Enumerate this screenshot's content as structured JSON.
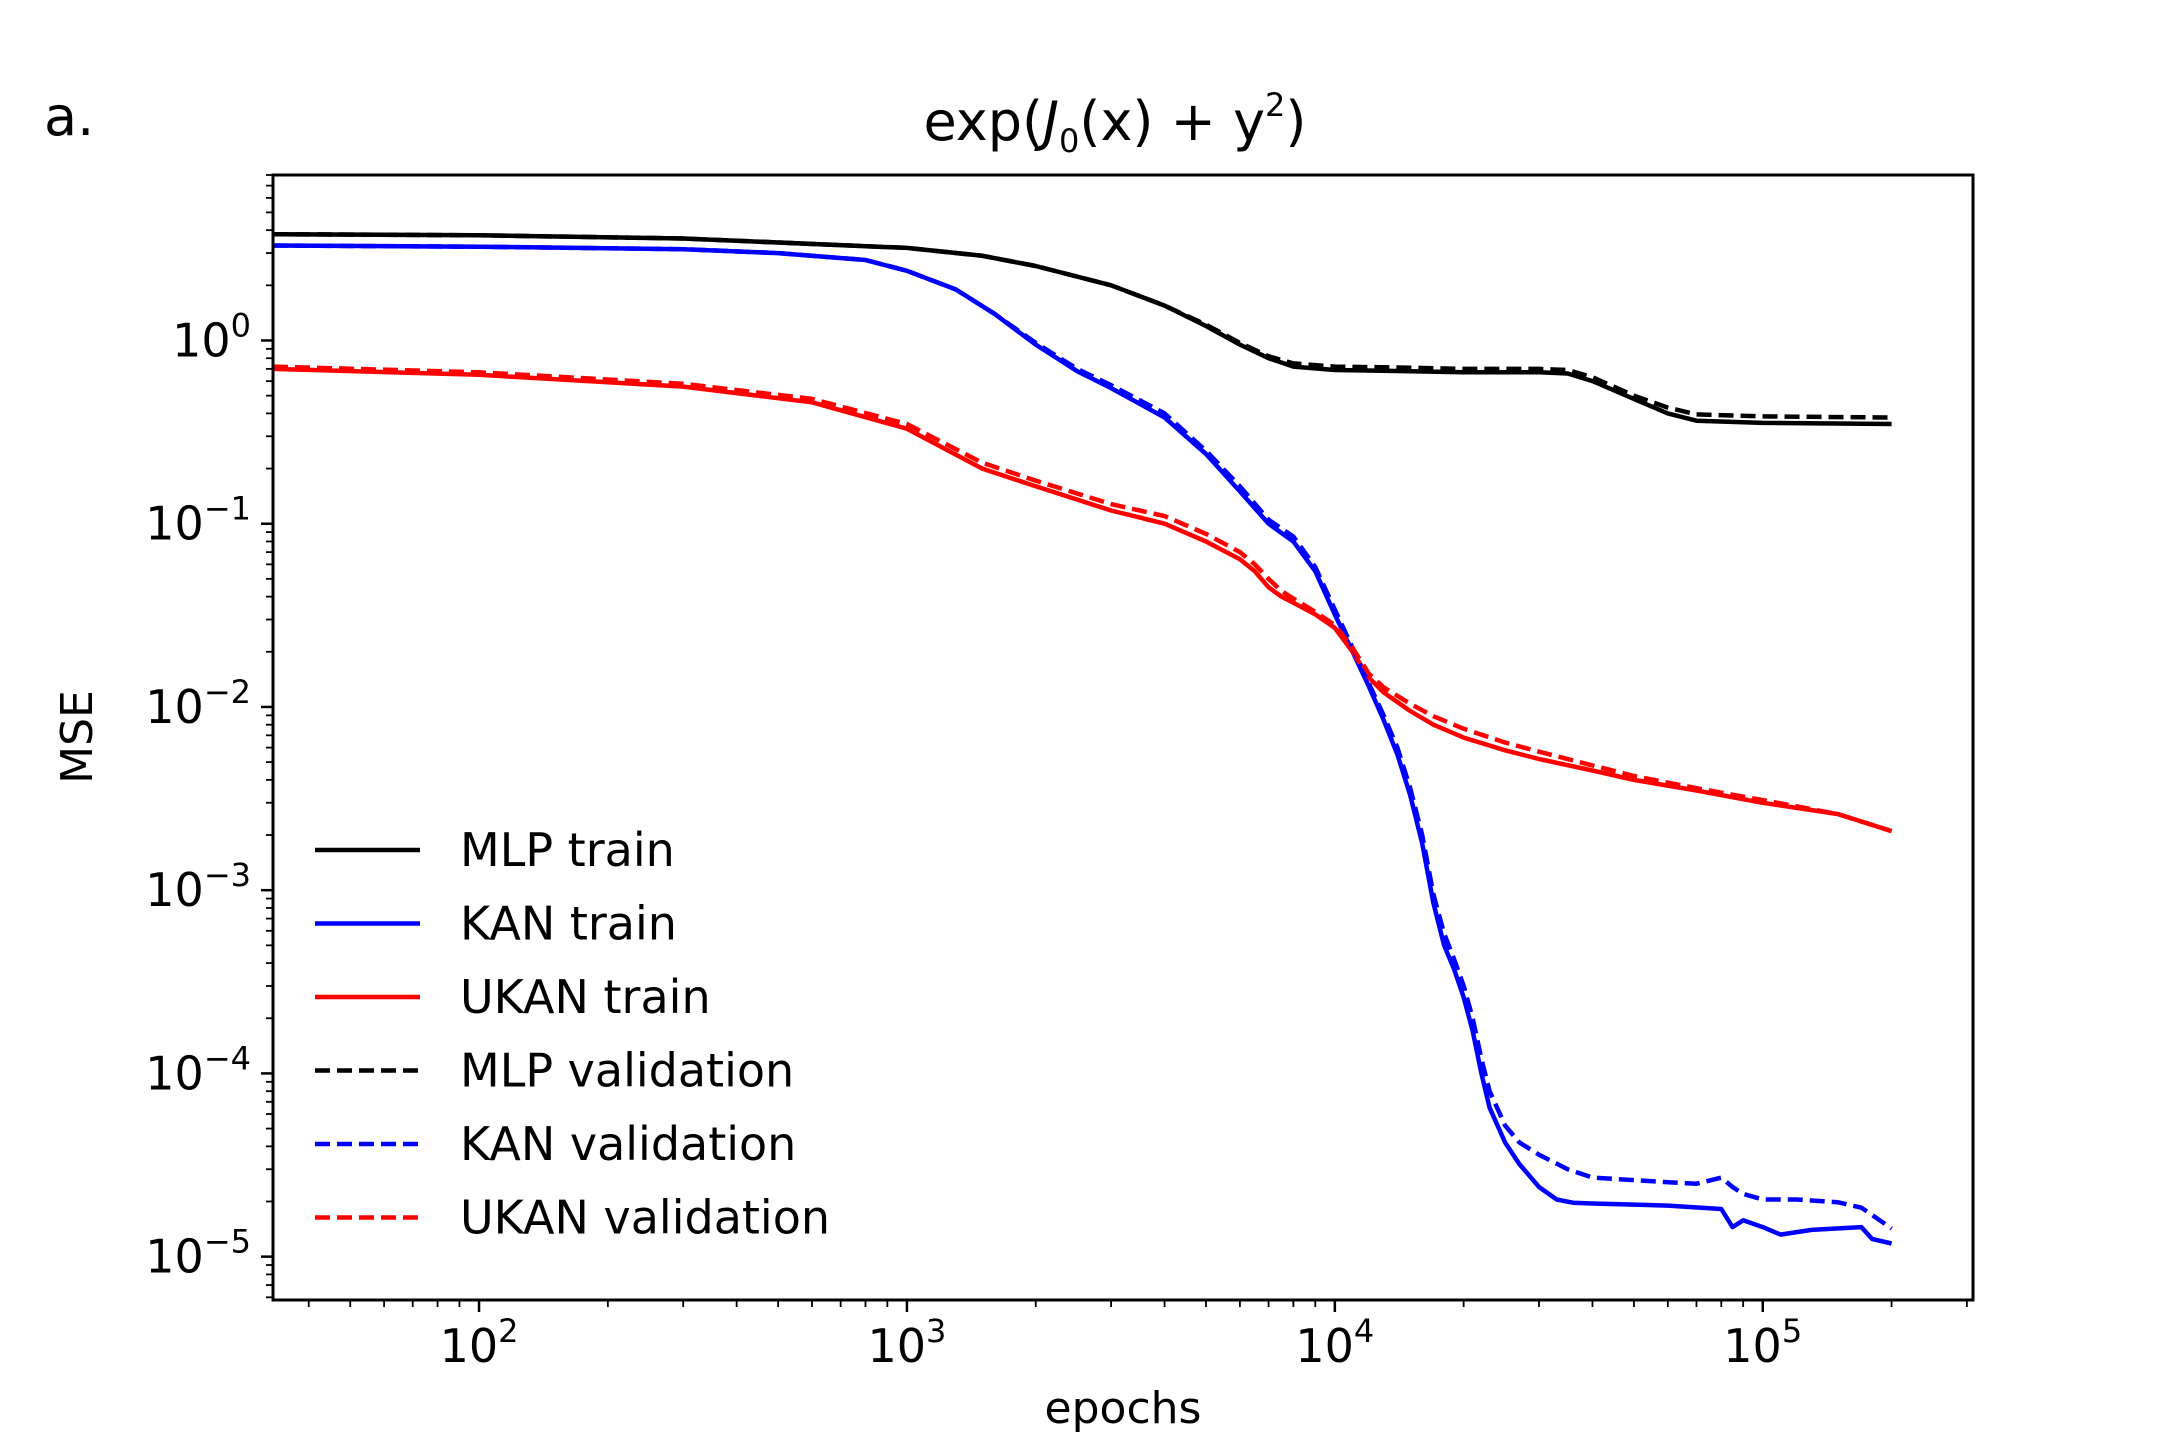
{
  "panel_label": "a.",
  "chart_data": {
    "type": "line",
    "title": "exp(J0(x) + y2)",
    "title_parts": {
      "prefix": "exp(",
      "func": "J",
      "sub": "0",
      "mid": "(x) + y",
      "sup": "2",
      "suffix": ")"
    },
    "xlabel": "epochs",
    "ylabel": "MSE",
    "xscale": "log",
    "yscale": "log",
    "xlim": [
      33,
      310000
    ],
    "ylim": [
      5.8e-06,
      8
    ],
    "grid": false,
    "legend_position": "lower-left",
    "x_ticks": [
      {
        "value": 100,
        "base": "10",
        "exp": "2"
      },
      {
        "value": 1000,
        "base": "10",
        "exp": "3"
      },
      {
        "value": 10000,
        "base": "10",
        "exp": "4"
      },
      {
        "value": 100000,
        "base": "10",
        "exp": "5"
      }
    ],
    "y_ticks": [
      {
        "value": 1,
        "base": "10",
        "exp": "0"
      },
      {
        "value": 0.1,
        "base": "10",
        "exp": "−1"
      },
      {
        "value": 0.01,
        "base": "10",
        "exp": "−2"
      },
      {
        "value": 0.001,
        "base": "10",
        "exp": "−3"
      },
      {
        "value": 0.0001,
        "base": "10",
        "exp": "−4"
      },
      {
        "value": 1e-05,
        "base": "10",
        "exp": "−5"
      }
    ],
    "series": [
      {
        "name": "MLP train",
        "color": "#000000",
        "dash": "solid",
        "points": [
          [
            33,
            3.8
          ],
          [
            100,
            3.75
          ],
          [
            300,
            3.6
          ],
          [
            1000,
            3.2
          ],
          [
            1500,
            2.9
          ],
          [
            2000,
            2.55
          ],
          [
            3000,
            2.0
          ],
          [
            4000,
            1.55
          ],
          [
            5000,
            1.2
          ],
          [
            6000,
            0.95
          ],
          [
            7000,
            0.8
          ],
          [
            8000,
            0.72
          ],
          [
            10000,
            0.69
          ],
          [
            15000,
            0.68
          ],
          [
            20000,
            0.67
          ],
          [
            30000,
            0.67
          ],
          [
            35000,
            0.66
          ],
          [
            40000,
            0.6
          ],
          [
            50000,
            0.48
          ],
          [
            60000,
            0.4
          ],
          [
            70000,
            0.365
          ],
          [
            100000,
            0.355
          ],
          [
            200000,
            0.35
          ]
        ]
      },
      {
        "name": "KAN train",
        "color": "#0000ff",
        "dash": "solid",
        "points": [
          [
            33,
            3.3
          ],
          [
            100,
            3.25
          ],
          [
            300,
            3.15
          ],
          [
            500,
            3.0
          ],
          [
            800,
            2.75
          ],
          [
            1000,
            2.4
          ],
          [
            1300,
            1.9
          ],
          [
            1600,
            1.4
          ],
          [
            2000,
            0.95
          ],
          [
            2500,
            0.68
          ],
          [
            3000,
            0.55
          ],
          [
            4000,
            0.38
          ],
          [
            5000,
            0.24
          ],
          [
            6000,
            0.15
          ],
          [
            7000,
            0.1
          ],
          [
            8000,
            0.08
          ],
          [
            9000,
            0.055
          ],
          [
            10000,
            0.032
          ],
          [
            11000,
            0.02
          ],
          [
            12000,
            0.013
          ],
          [
            13000,
            0.0085
          ],
          [
            14000,
            0.0055
          ],
          [
            15000,
            0.0033
          ],
          [
            16000,
            0.0018
          ],
          [
            17000,
            0.00085
          ],
          [
            18000,
            0.0005
          ],
          [
            19000,
            0.00037
          ],
          [
            20000,
            0.00026
          ],
          [
            21000,
            0.00017
          ],
          [
            22000,
            0.0001
          ],
          [
            23000,
            6.5e-05
          ],
          [
            25000,
            4.2e-05
          ],
          [
            27000,
            3.2e-05
          ],
          [
            30000,
            2.4e-05
          ],
          [
            33000,
            2.05e-05
          ],
          [
            36000,
            1.97e-05
          ],
          [
            40000,
            1.95e-05
          ],
          [
            60000,
            1.9e-05
          ],
          [
            80000,
            1.82e-05
          ],
          [
            85000,
            1.45e-05
          ],
          [
            90000,
            1.58e-05
          ],
          [
            100000,
            1.45e-05
          ],
          [
            110000,
            1.32e-05
          ],
          [
            130000,
            1.4e-05
          ],
          [
            170000,
            1.45e-05
          ],
          [
            180000,
            1.25e-05
          ],
          [
            200000,
            1.18e-05
          ]
        ]
      },
      {
        "name": "UKAN train",
        "color": "#ff0000",
        "dash": "solid",
        "points": [
          [
            33,
            0.7
          ],
          [
            100,
            0.65
          ],
          [
            300,
            0.56
          ],
          [
            600,
            0.46
          ],
          [
            1000,
            0.33
          ],
          [
            1500,
            0.2
          ],
          [
            2000,
            0.16
          ],
          [
            3000,
            0.118
          ],
          [
            4000,
            0.1
          ],
          [
            5000,
            0.08
          ],
          [
            6000,
            0.064
          ],
          [
            6500,
            0.055
          ],
          [
            7000,
            0.045
          ],
          [
            7500,
            0.04
          ],
          [
            8000,
            0.037
          ],
          [
            9000,
            0.032
          ],
          [
            10000,
            0.027
          ],
          [
            11000,
            0.02
          ],
          [
            12000,
            0.0145
          ],
          [
            13000,
            0.012
          ],
          [
            15000,
            0.0095
          ],
          [
            17000,
            0.008
          ],
          [
            20000,
            0.0068
          ],
          [
            25000,
            0.0058
          ],
          [
            30000,
            0.0052
          ],
          [
            40000,
            0.0045
          ],
          [
            50000,
            0.004
          ],
          [
            70000,
            0.0035
          ],
          [
            100000,
            0.003
          ],
          [
            150000,
            0.0026
          ],
          [
            200000,
            0.0021
          ]
        ]
      },
      {
        "name": "MLP validation",
        "color": "#000000",
        "dash": "dashed",
        "points": [
          [
            33,
            3.8
          ],
          [
            100,
            3.75
          ],
          [
            300,
            3.6
          ],
          [
            1000,
            3.2
          ],
          [
            1500,
            2.9
          ],
          [
            2000,
            2.55
          ],
          [
            3000,
            2.0
          ],
          [
            4000,
            1.55
          ],
          [
            5000,
            1.22
          ],
          [
            6000,
            0.97
          ],
          [
            7000,
            0.82
          ],
          [
            8000,
            0.75
          ],
          [
            10000,
            0.72
          ],
          [
            15000,
            0.71
          ],
          [
            20000,
            0.7
          ],
          [
            30000,
            0.7
          ],
          [
            35000,
            0.69
          ],
          [
            40000,
            0.63
          ],
          [
            50000,
            0.5
          ],
          [
            60000,
            0.43
          ],
          [
            70000,
            0.395
          ],
          [
            100000,
            0.385
          ],
          [
            200000,
            0.38
          ]
        ]
      },
      {
        "name": "KAN validation",
        "color": "#0000ff",
        "dash": "dashed",
        "points": [
          [
            33,
            3.3
          ],
          [
            100,
            3.25
          ],
          [
            300,
            3.15
          ],
          [
            500,
            3.0
          ],
          [
            800,
            2.75
          ],
          [
            1000,
            2.4
          ],
          [
            1300,
            1.9
          ],
          [
            1600,
            1.4
          ],
          [
            2000,
            0.97
          ],
          [
            2500,
            0.7
          ],
          [
            3000,
            0.57
          ],
          [
            4000,
            0.4
          ],
          [
            5000,
            0.25
          ],
          [
            6000,
            0.16
          ],
          [
            7000,
            0.105
          ],
          [
            8000,
            0.085
          ],
          [
            9000,
            0.058
          ],
          [
            10000,
            0.034
          ],
          [
            11000,
            0.021
          ],
          [
            12000,
            0.0135
          ],
          [
            13000,
            0.009
          ],
          [
            14000,
            0.006
          ],
          [
            15000,
            0.0036
          ],
          [
            16000,
            0.002
          ],
          [
            17000,
            0.00095
          ],
          [
            18000,
            0.00058
          ],
          [
            19000,
            0.00042
          ],
          [
            20000,
            0.0003
          ],
          [
            21000,
            0.0002
          ],
          [
            22000,
            0.00012
          ],
          [
            23000,
            8e-05
          ],
          [
            25000,
            5.2e-05
          ],
          [
            27000,
            4.2e-05
          ],
          [
            30000,
            3.6e-05
          ],
          [
            35000,
            3e-05
          ],
          [
            40000,
            2.7e-05
          ],
          [
            60000,
            2.55e-05
          ],
          [
            70000,
            2.5e-05
          ],
          [
            80000,
            2.7e-05
          ],
          [
            85000,
            2.4e-05
          ],
          [
            90000,
            2.2e-05
          ],
          [
            100000,
            2.05e-05
          ],
          [
            120000,
            2.05e-05
          ],
          [
            150000,
            1.98e-05
          ],
          [
            170000,
            1.85e-05
          ],
          [
            190000,
            1.55e-05
          ],
          [
            200000,
            1.42e-05
          ]
        ]
      },
      {
        "name": "UKAN validation",
        "color": "#ff0000",
        "dash": "dashed",
        "points": [
          [
            33,
            0.72
          ],
          [
            100,
            0.67
          ],
          [
            300,
            0.58
          ],
          [
            600,
            0.48
          ],
          [
            1000,
            0.35
          ],
          [
            1500,
            0.215
          ],
          [
            2000,
            0.172
          ],
          [
            3000,
            0.128
          ],
          [
            4000,
            0.11
          ],
          [
            5000,
            0.088
          ],
          [
            6000,
            0.07
          ],
          [
            6500,
            0.06
          ],
          [
            7000,
            0.05
          ],
          [
            7500,
            0.043
          ],
          [
            8000,
            0.039
          ],
          [
            9000,
            0.033
          ],
          [
            10000,
            0.028
          ],
          [
            11000,
            0.021
          ],
          [
            12000,
            0.0152
          ],
          [
            13000,
            0.0128
          ],
          [
            15000,
            0.0104
          ],
          [
            17000,
            0.0089
          ],
          [
            20000,
            0.0076
          ],
          [
            25000,
            0.0064
          ],
          [
            30000,
            0.0057
          ],
          [
            40000,
            0.0048
          ],
          [
            50000,
            0.0042
          ],
          [
            70000,
            0.0036
          ],
          [
            100000,
            0.0031
          ],
          [
            150000,
            0.0026
          ],
          [
            200000,
            0.0021
          ]
        ]
      }
    ]
  }
}
